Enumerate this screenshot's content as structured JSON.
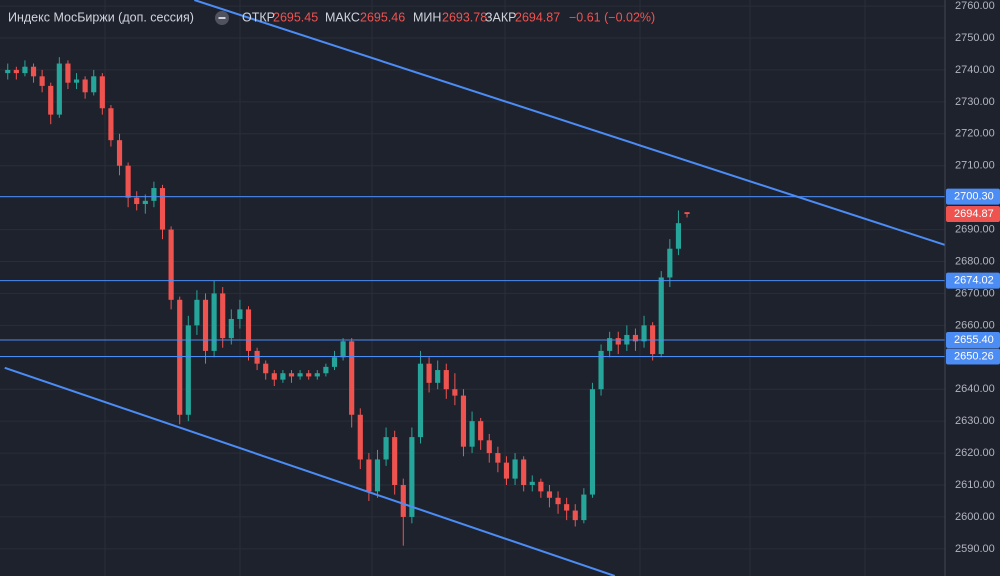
{
  "chart_data": {
    "type": "candlestick",
    "title": "Индекс МосБиржи (доп. сессия)",
    "ohlc_labels": [
      "ОТКР",
      "МАКС",
      "МИН",
      "ЗАКР"
    ],
    "change_label": "−0.61 (−0.02%)",
    "up_color": "#26a69a",
    "down_color": "#ef5350",
    "open": [
      2739,
      2740,
      2739,
      2741,
      2738,
      2735,
      2726,
      2742,
      2736,
      2737,
      2733,
      2738,
      2728,
      2718,
      2710,
      2700,
      2698,
      2699,
      2703,
      2690,
      2668,
      2632,
      2660,
      2668,
      2652,
      2670,
      2656,
      2662,
      2665,
      2652,
      2648,
      2645,
      2643,
      2645,
      2644,
      2645,
      2644,
      2645,
      2647,
      2650,
      2655,
      2632,
      2618,
      2608,
      2618,
      2625,
      2610,
      2600,
      2625,
      2648,
      2642,
      2646,
      2640,
      2638,
      2622,
      2630,
      2624,
      2620,
      2617,
      2612,
      2618,
      2610,
      2611,
      2608,
      2606,
      2604,
      2602,
      2599,
      2607,
      2640,
      2652,
      2656,
      2654,
      2657,
      2655,
      2660,
      2651,
      2675,
      2684,
      2695.45
    ],
    "high": [
      2742,
      2741,
      2743,
      2742,
      2740,
      2736,
      2744,
      2743,
      2739,
      2738,
      2740,
      2739,
      2729,
      2720,
      2711,
      2702,
      2701,
      2705,
      2704,
      2691,
      2669,
      2663,
      2671,
      2670,
      2674,
      2672,
      2665,
      2668,
      2666,
      2653,
      2649,
      2646,
      2646,
      2646,
      2646,
      2646,
      2646,
      2648,
      2652,
      2656,
      2656,
      2634,
      2620,
      2621,
      2628,
      2627,
      2612,
      2628,
      2652,
      2650,
      2649,
      2648,
      2645,
      2640,
      2633,
      2631,
      2626,
      2622,
      2619,
      2620,
      2619,
      2613,
      2612,
      2610,
      2608,
      2606,
      2604,
      2609,
      2642,
      2654,
      2658,
      2658,
      2660,
      2659,
      2663,
      2661,
      2677,
      2687,
      2696,
      2695.46
    ],
    "low": [
      2737,
      2737,
      2738,
      2736,
      2733,
      2723,
      2725,
      2734,
      2734,
      2731,
      2732,
      2726,
      2716,
      2707,
      2697,
      2696,
      2695,
      2697,
      2687,
      2665,
      2629,
      2630,
      2657,
      2648,
      2650,
      2653,
      2654,
      2659,
      2649,
      2646,
      2643,
      2641,
      2642,
      2642,
      2643,
      2643,
      2643,
      2644,
      2646,
      2649,
      2628,
      2615,
      2605,
      2606,
      2616,
      2607,
      2591,
      2598,
      2623,
      2639,
      2640,
      2637,
      2635,
      2619,
      2620,
      2621,
      2617,
      2614,
      2610,
      2610,
      2608,
      2608,
      2606,
      2603,
      2601,
      2599,
      2597,
      2598,
      2606,
      2638,
      2650,
      2651,
      2652,
      2652,
      2653,
      2649,
      2650,
      2672,
      2682,
      2693.78
    ],
    "close": [
      2740,
      2739,
      2741,
      2738,
      2735,
      2726,
      2742,
      2736,
      2737,
      2733,
      2738,
      2728,
      2718,
      2710,
      2700,
      2698,
      2699,
      2703,
      2690,
      2668,
      2632,
      2660,
      2668,
      2652,
      2670,
      2656,
      2662,
      2665,
      2652,
      2648,
      2645,
      2643,
      2645,
      2644,
      2645,
      2644,
      2645,
      2647,
      2650,
      2655,
      2632,
      2618,
      2608,
      2618,
      2625,
      2610,
      2600,
      2625,
      2648,
      2642,
      2646,
      2640,
      2638,
      2622,
      2630,
      2624,
      2620,
      2617,
      2612,
      2618,
      2610,
      2611,
      2608,
      2606,
      2604,
      2602,
      2599,
      2607,
      2640,
      2652,
      2656,
      2654,
      2657,
      2655,
      2660,
      2651,
      2675,
      2684,
      2692,
      2694.87
    ],
    "xlim": [
      -0.9,
      109
    ],
    "ylim": [
      2581.5,
      2761.9
    ],
    "yticks": [
      {
        "value": 2590,
        "label": "2590.00"
      },
      {
        "value": 2600,
        "label": "2600.00"
      },
      {
        "value": 2610,
        "label": "2610.00"
      },
      {
        "value": 2620,
        "label": "2620.00"
      },
      {
        "value": 2630,
        "label": "2630.00"
      },
      {
        "value": 2640,
        "label": "2640.00"
      },
      {
        "value": 2650,
        "label": "2650.00"
      },
      {
        "value": 2660,
        "label": "2660.00"
      },
      {
        "value": 2670,
        "label": "2670.00"
      },
      {
        "value": 2680,
        "label": "2680.00"
      },
      {
        "value": 2690,
        "label": "2690.00"
      },
      {
        "value": 2700,
        "label": "2700.00"
      },
      {
        "value": 2710,
        "label": "2710.00"
      },
      {
        "value": 2720,
        "label": "2720.00"
      },
      {
        "value": 2730,
        "label": "2730.00"
      },
      {
        "value": 2740,
        "label": "2740.00"
      },
      {
        "value": 2750,
        "label": "2750.00"
      },
      {
        "value": 2760,
        "label": "2760.00"
      }
    ],
    "grid": true,
    "level_color": "#4c8cf5",
    "levels": [
      {
        "value": 2700.3,
        "label": "2700.30"
      },
      {
        "value": 2674.02,
        "label": "2674.02"
      },
      {
        "value": 2655.4,
        "label": "2655.40"
      },
      {
        "value": 2650.26,
        "label": "2650.26"
      }
    ],
    "trendlines": [
      {
        "start": [
          21.7,
          2761.9
        ],
        "end": [
          109,
          2685.2
        ]
      },
      {
        "start": [
          -0.35,
          2646.7
        ],
        "end": [
          70.6,
          2581.5
        ]
      }
    ]
  }
}
